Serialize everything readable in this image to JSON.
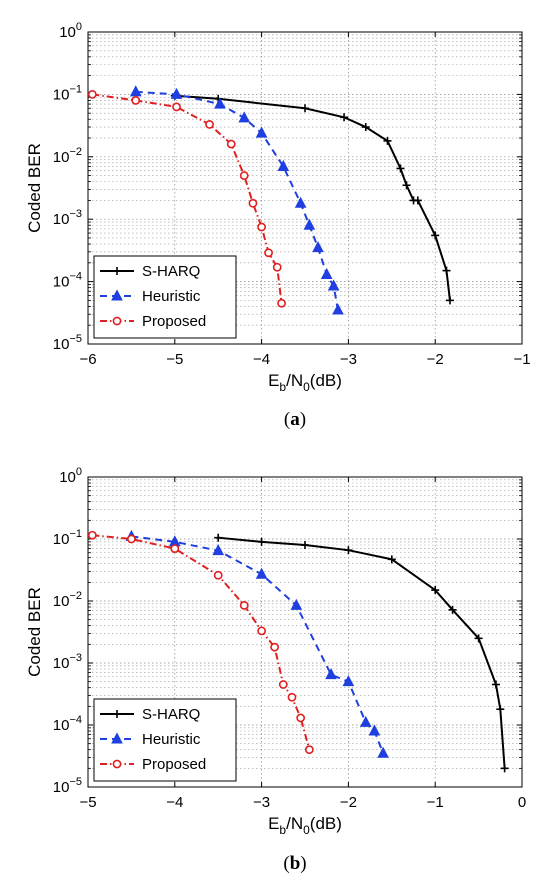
{
  "chart_data": [
    {
      "type": "line",
      "panel_label": "(a)",
      "caption_letter": "a",
      "xlabel": "Eb/N0(dB)",
      "ylabel": "Coded BER",
      "xlim": [
        -6,
        -1
      ],
      "ylim": [
        1e-05,
        1
      ],
      "yscale": "log",
      "grid": true,
      "legend_position": "lower-left",
      "x_ticks": [
        -6,
        -5,
        -4,
        -3,
        -2,
        -1
      ],
      "series": [
        {
          "name": "S-HARQ",
          "color": "#000000",
          "line_style": "solid",
          "marker": "plus",
          "x": [
            -5.0,
            -4.5,
            -3.5,
            -3.05,
            -2.8,
            -2.55,
            -2.4,
            -2.33,
            -2.25,
            -2.2,
            -2.0,
            -1.87,
            -1.83
          ],
          "y": [
            0.095,
            0.085,
            0.06,
            0.043,
            0.03,
            0.018,
            0.0065,
            0.0035,
            0.002,
            0.002,
            0.00055,
            0.00015,
            5e-05
          ]
        },
        {
          "name": "Heuristic",
          "color": "#1f3fe0",
          "line_style": "dashed",
          "marker": "triangle",
          "x": [
            -5.45,
            -4.98,
            -4.48,
            -4.2,
            -4.0,
            -3.75,
            -3.55,
            -3.45,
            -3.35,
            -3.25,
            -3.17,
            -3.12
          ],
          "y": [
            0.11,
            0.1,
            0.07,
            0.042,
            0.024,
            0.007,
            0.0018,
            0.0008,
            0.00035,
            0.00013,
            8.5e-05,
            3.5e-05
          ],
          "drop_first_point": false
        },
        {
          "name": "Proposed",
          "color": "#e02020",
          "line_style": "dashdot",
          "marker": "circle",
          "x": [
            -5.95,
            -5.45,
            -4.98,
            -4.6,
            -4.35,
            -4.2,
            -4.1,
            -4.0,
            -3.92,
            -3.82,
            -3.77
          ],
          "y": [
            0.1,
            0.08,
            0.063,
            0.033,
            0.016,
            0.005,
            0.0018,
            0.00075,
            0.00029,
            0.00017,
            4.5e-05
          ]
        }
      ]
    },
    {
      "type": "line",
      "panel_label": "(b)",
      "caption_letter": "b",
      "xlabel": "Eb/N0(dB)",
      "ylabel": "Coded BER",
      "xlim": [
        -5,
        0
      ],
      "ylim": [
        1e-05,
        1
      ],
      "yscale": "log",
      "grid": true,
      "legend_position": "lower-left",
      "x_ticks": [
        -5,
        -4,
        -3,
        -2,
        -1,
        0
      ],
      "series": [
        {
          "name": "S-HARQ",
          "color": "#000000",
          "line_style": "solid",
          "marker": "plus",
          "x": [
            -3.5,
            -3.0,
            -2.5,
            -2.0,
            -1.5,
            -1.0,
            -0.8,
            -0.5,
            -0.3,
            -0.25,
            -0.2
          ],
          "y": [
            0.105,
            0.09,
            0.08,
            0.066,
            0.047,
            0.015,
            0.0072,
            0.0025,
            0.00045,
            0.00018,
            2e-05
          ]
        },
        {
          "name": "Heuristic",
          "color": "#1f3fe0",
          "line_style": "dashed",
          "marker": "triangle",
          "x": [
            -4.5,
            -4.0,
            -3.5,
            -3.0,
            -2.6,
            -2.2,
            -2.0,
            -1.8,
            -1.7,
            -1.6
          ],
          "y": [
            0.11,
            0.09,
            0.065,
            0.027,
            0.0085,
            0.00065,
            0.0005,
            0.00011,
            8e-05,
            3.5e-05
          ]
        },
        {
          "name": "Proposed",
          "color": "#e02020",
          "line_style": "dashdot",
          "marker": "circle",
          "x": [
            -4.95,
            -4.5,
            -4.0,
            -3.5,
            -3.2,
            -3.0,
            -2.85,
            -2.75,
            -2.65,
            -2.55,
            -2.45
          ],
          "y": [
            0.115,
            0.1,
            0.07,
            0.026,
            0.0085,
            0.0033,
            0.0018,
            0.00045,
            0.00028,
            0.00013,
            4e-05
          ]
        }
      ]
    }
  ]
}
